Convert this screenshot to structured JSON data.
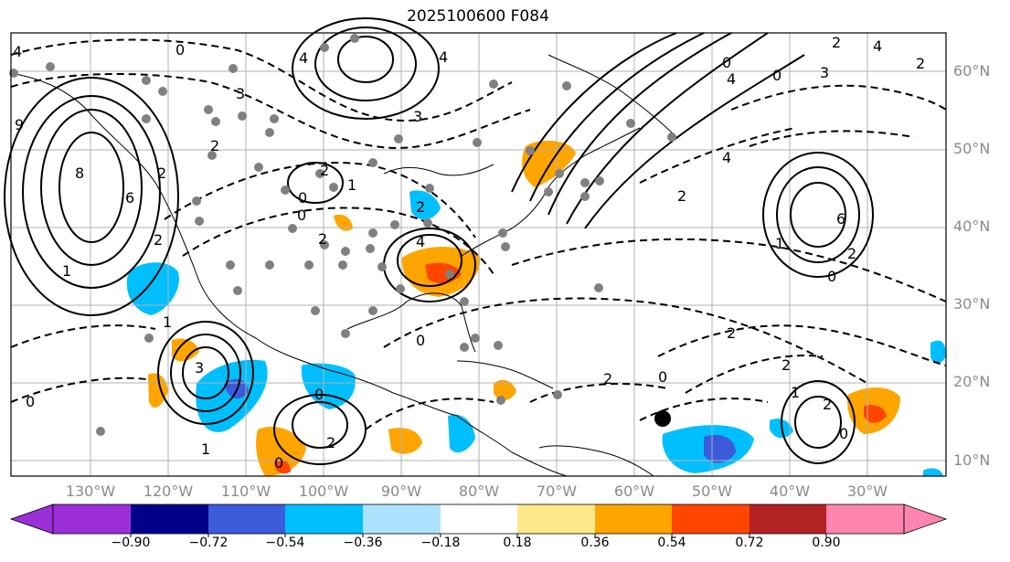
{
  "title": "2025100600 F084",
  "lat_labels": [
    "60°N",
    "50°N",
    "40°N",
    "30°N",
    "20°N",
    "10°N"
  ],
  "lon_labels": [
    "130°W",
    "120°W",
    "110°W",
    "100°W",
    "90°W",
    "80°W",
    "70°W",
    "60°W",
    "50°W",
    "40°W",
    "30°W"
  ],
  "contour_labels": [
    "4",
    "9",
    "8",
    "6",
    "2",
    "1",
    "4",
    "2",
    "3",
    "0",
    "2",
    "0",
    "3",
    "0",
    "2",
    "0",
    "4",
    "2",
    "4",
    "6",
    "2",
    "0",
    "0",
    "4",
    "2",
    "0",
    "2",
    "1",
    "0",
    "2",
    "4",
    "3",
    "1",
    "2",
    "0",
    "2",
    "0",
    "3",
    "2",
    "2",
    "1",
    "0",
    "1",
    "0",
    "1",
    "2",
    "4",
    "2"
  ],
  "colorbar": {
    "ticks": [
      "−0.90",
      "−0.72",
      "−0.54",
      "−0.36",
      "−0.18",
      "0.18",
      "0.36",
      "0.54",
      "0.72",
      "0.90"
    ],
    "colors": [
      "#9b30d9",
      "#00008b",
      "#3b5bdb",
      "#00bfff",
      "#aee3ff",
      "#ffffff",
      "#ffe98a",
      "#ffa500",
      "#ff4500",
      "#b22222",
      "#ff85b0"
    ]
  },
  "colors": {
    "grid": "#b0b0b0",
    "ocean": "#ffffff",
    "station": "#808080",
    "contour": "#000000",
    "label_gray": "#8a8a8a"
  }
}
